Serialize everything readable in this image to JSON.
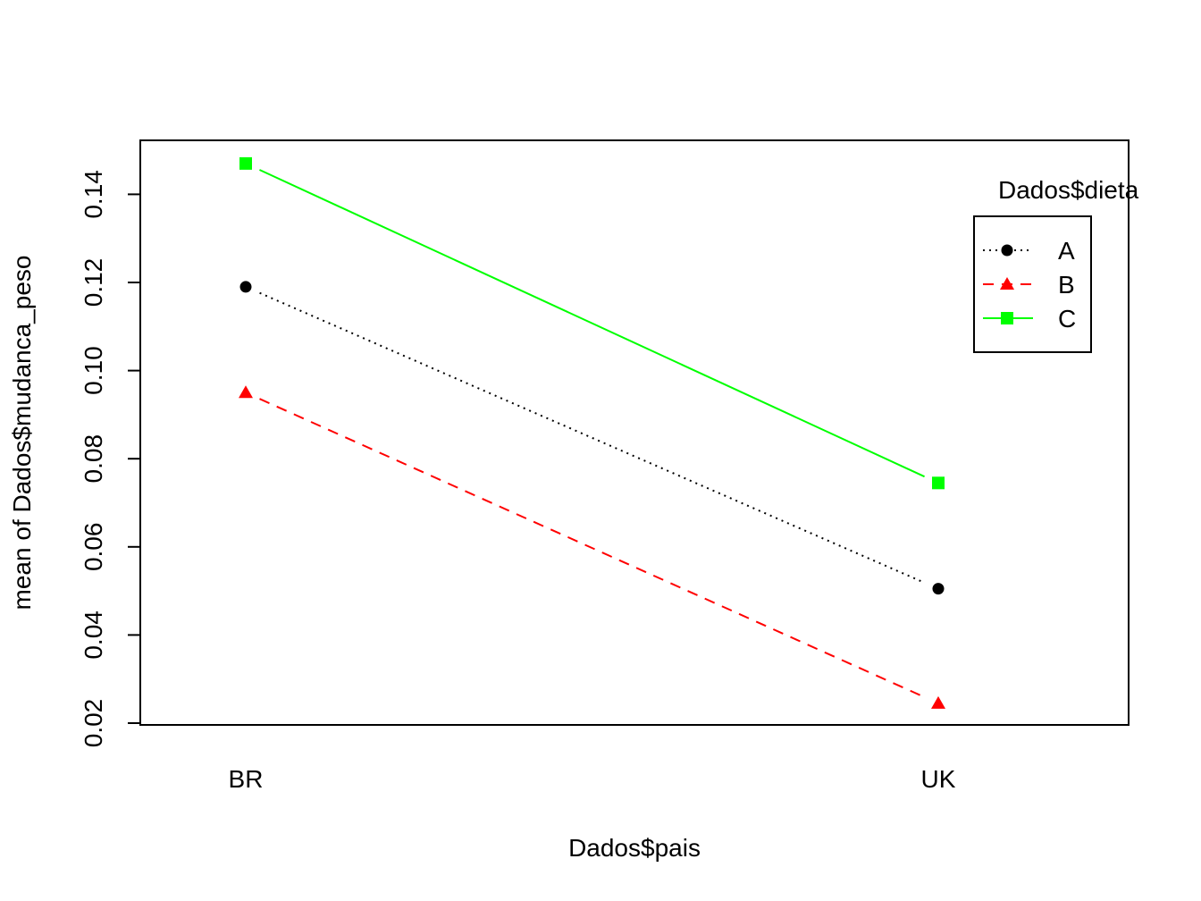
{
  "chart_data": {
    "type": "line",
    "title": "",
    "xlabel": "Dados$pais",
    "ylabel": "mean of  Dados$mudanca_peso",
    "categories": [
      "BR",
      "UK"
    ],
    "ylim": [
      0.02,
      0.15
    ],
    "yticks": [
      0.02,
      0.04,
      0.06,
      0.08,
      0.1,
      0.12,
      0.14
    ],
    "ytick_labels": [
      "0.02",
      "0.04",
      "0.06",
      "0.08",
      "0.10",
      "0.12",
      "0.14"
    ],
    "grid": false,
    "legend": {
      "title": "Dados$dieta",
      "placement": "top-right"
    },
    "series": [
      {
        "name": "A",
        "values": [
          0.119,
          0.0505
        ],
        "color": "#000000",
        "line_style": "dotted",
        "marker": "circle"
      },
      {
        "name": "B",
        "values": [
          0.095,
          0.0245
        ],
        "color": "#ff0000",
        "line_style": "dashed",
        "marker": "triangle"
      },
      {
        "name": "C",
        "values": [
          0.147,
          0.0745
        ],
        "color": "#00ff00",
        "line_style": "solid",
        "marker": "square"
      }
    ]
  }
}
